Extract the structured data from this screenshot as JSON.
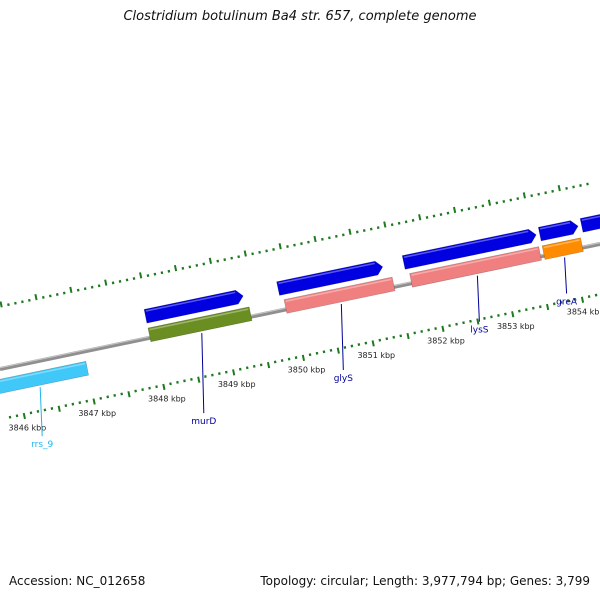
{
  "title": "Clostridium botulinum Ba4 str. 657, complete genome",
  "accession_text": "Accession: NC_012658",
  "stats_text": "Topology: circular; Length: 3,977,794 bp; Genes: 3,799",
  "axis": {
    "unit": "kbp",
    "start_kbp": 3845.8,
    "end_kbp": 3854.4
  },
  "ticks": [
    {
      "label": "3846 kbp",
      "pos": 3846
    },
    {
      "label": "3847 kbp",
      "pos": 3847
    },
    {
      "label": "3848 kbp",
      "pos": 3848
    },
    {
      "label": "3849 kbp",
      "pos": 3849
    },
    {
      "label": "3850 kbp",
      "pos": 3850
    },
    {
      "label": "3851 kbp",
      "pos": 3851
    },
    {
      "label": "3852 kbp",
      "pos": 3852
    },
    {
      "label": "3853 kbp",
      "pos": 3853
    },
    {
      "label": "3854 kbp",
      "pos": 3854
    }
  ],
  "features": [
    {
      "type": "gene",
      "strand": "forward",
      "start": 3847.95,
      "end": 3849.35,
      "color": "#0000e0"
    },
    {
      "type": "gene",
      "strand": "forward",
      "start": 3849.85,
      "end": 3851.35,
      "color": "#0000e0"
    },
    {
      "type": "gene",
      "strand": "forward",
      "start": 3851.65,
      "end": 3853.55,
      "color": "#0000e0"
    },
    {
      "type": "gene",
      "strand": "forward",
      "start": 3853.6,
      "end": 3854.15,
      "color": "#0000e0"
    },
    {
      "type": "gene",
      "strand": "forward",
      "start": 3854.2,
      "end": 3855.3,
      "color": "#0000e0"
    },
    {
      "type": "CDS",
      "strand": "none",
      "start": 3847.95,
      "end": 3849.4,
      "color": "#6b8e23",
      "label": "murD",
      "label_color": "#000099"
    },
    {
      "type": "CDS",
      "strand": "none",
      "start": 3849.9,
      "end": 3851.45,
      "color": "#f08080",
      "label": "glyS",
      "label_color": "#000099"
    },
    {
      "type": "CDS",
      "strand": "none",
      "start": 3851.7,
      "end": 3853.55,
      "color": "#f08080",
      "label": "lysS",
      "label_color": "#000099"
    },
    {
      "type": "CDS",
      "strand": "none",
      "start": 3853.6,
      "end": 3854.15,
      "color": "#ff8c00",
      "label": "greA",
      "label_color": "#000099"
    },
    {
      "type": "rRNA",
      "strand": "reverse",
      "start": 3845.6,
      "end": 3847.0,
      "color": "#40c8f8",
      "label": "rrs_9",
      "label_color": "#1fb5ee"
    }
  ]
}
